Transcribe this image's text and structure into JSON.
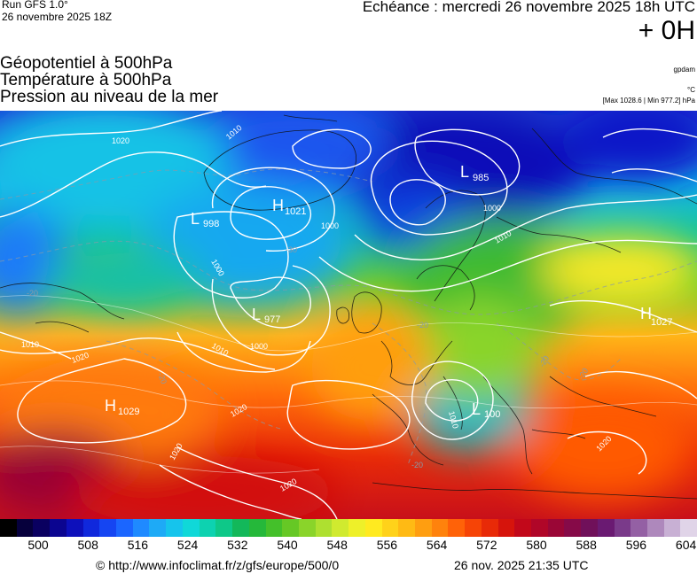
{
  "header": {
    "run": "Run GFS 1.0°",
    "run_date": "26 novembre 2025 18Z",
    "echeance": "Echéance : mercredi 26 novembre 2025 18h UTC",
    "horizon": "+ 0H"
  },
  "layers": {
    "line1": "Géopotentiel à 500hPa",
    "line2": "Température à 500hPa",
    "line3": "Pression au niveau de la mer"
  },
  "units": {
    "geopotential": "gpdam",
    "temperature": "°C",
    "pressure_extremes": "[Max 1028.6 | Min 977.2] hPa"
  },
  "pressure_systems": [
    {
      "type": "L",
      "value": "985"
    },
    {
      "type": "H",
      "value": "1021"
    },
    {
      "type": "L",
      "value": "998"
    },
    {
      "type": "L",
      "value": "977"
    },
    {
      "type": "H",
      "value": "1029"
    },
    {
      "type": "L",
      "value": "100"
    },
    {
      "type": "H",
      "value": "1027"
    }
  ],
  "isobar_labels": [
    "1020",
    "1010",
    "1000",
    "1000",
    "1000",
    "1010",
    "1010",
    "1020",
    "1020",
    "1020",
    "1010",
    "1020",
    "1000",
    "1010",
    "1020"
  ],
  "isotherm_labels": [
    "-30",
    "-20",
    "-20",
    "-20",
    "-20",
    "-20",
    "-20"
  ],
  "color_scale": {
    "colors": [
      "#000000",
      "#06003c",
      "#0a0060",
      "#0b0590",
      "#0d10bb",
      "#1028dc",
      "#1545f2",
      "#1b66ff",
      "#1f8aff",
      "#1eaaf6",
      "#16c4ec",
      "#10d8d8",
      "#0dd2b0",
      "#0ec888",
      "#13b85a",
      "#25b83a",
      "#44c02a",
      "#66c825",
      "#8ad42a",
      "#aee030",
      "#d0ea2f",
      "#eef029",
      "#ffea20",
      "#ffd21a",
      "#ffba14",
      "#ff9e10",
      "#ff820c",
      "#ff6208",
      "#f64406",
      "#e82a08",
      "#d6140c",
      "#c2081a",
      "#b00628",
      "#9a0636",
      "#860a48",
      "#70105a",
      "#6a1a72",
      "#7a3a8a",
      "#9460a4",
      "#ae88bc",
      "#c8b0d4",
      "#e0d4e8"
    ],
    "tick_labels": [
      "500",
      "508",
      "516",
      "524",
      "532",
      "540",
      "548",
      "556",
      "564",
      "572",
      "580",
      "588",
      "596",
      "604"
    ]
  },
  "footer": {
    "credit": "© http://www.infoclimat.fr/z/gfs/europe/500/0",
    "timestamp": "26 nov. 2025 21:35 UTC"
  }
}
